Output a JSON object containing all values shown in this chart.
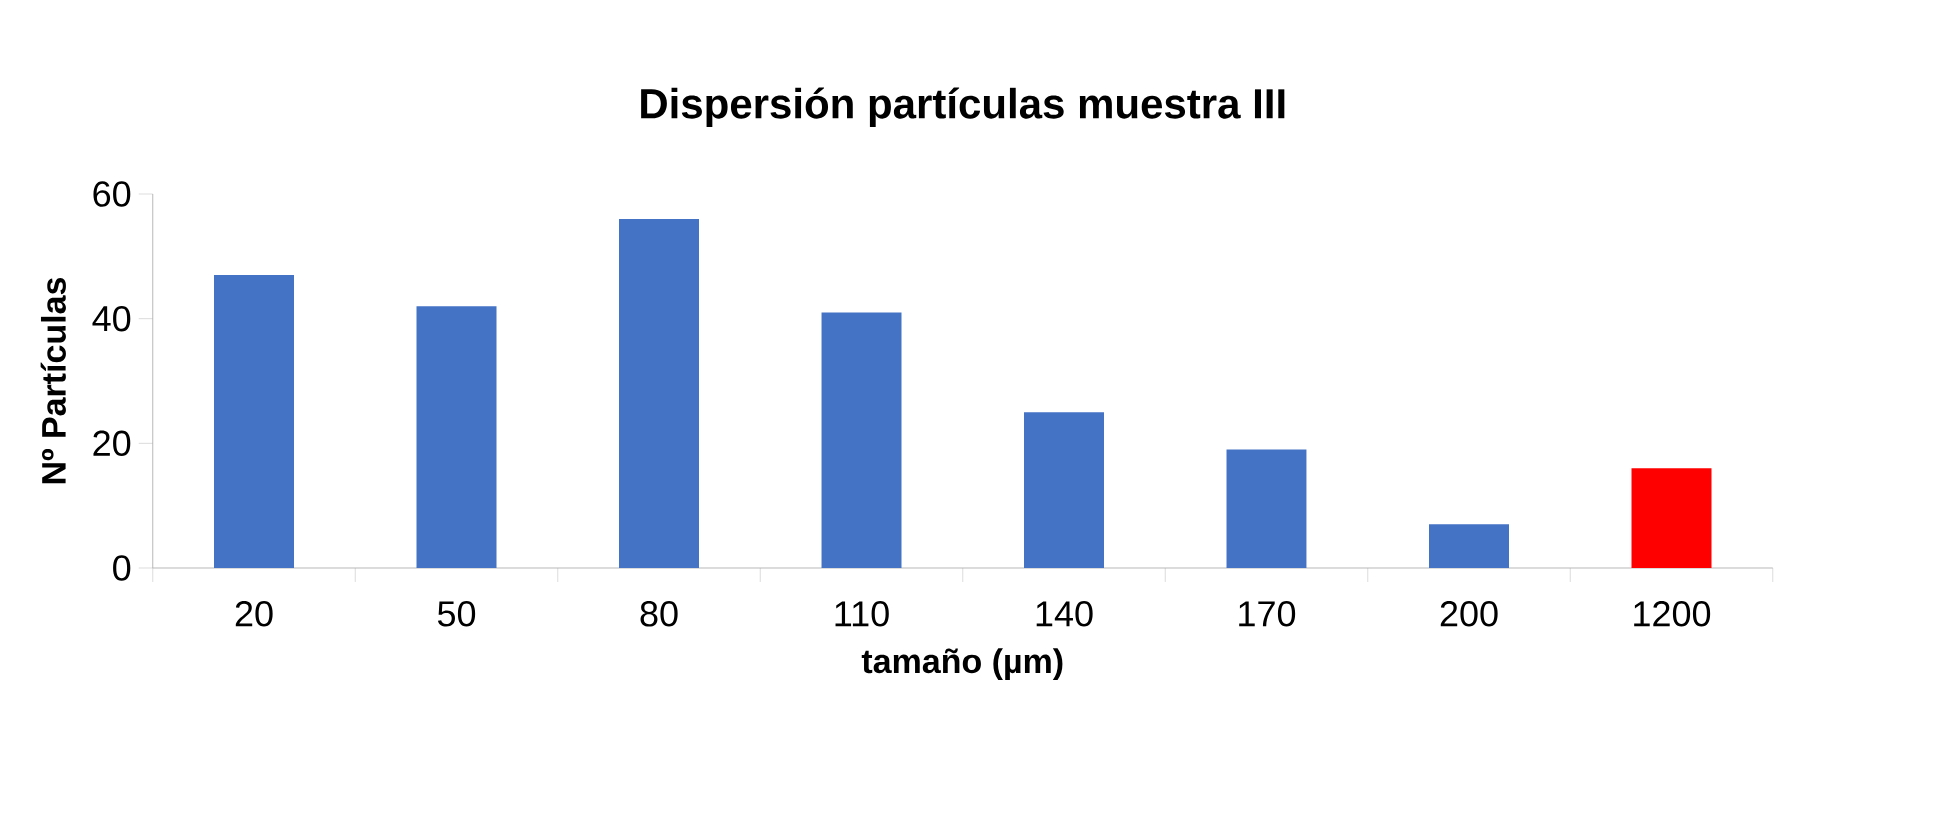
{
  "chart_data": {
    "type": "bar",
    "title": "Dispersión partículas muestra III",
    "xlabel": "tamaño (µm)",
    "ylabel": "Nº Partículas",
    "categories": [
      "20",
      "50",
      "80",
      "110",
      "140",
      "170",
      "200",
      "1200"
    ],
    "values": [
      47,
      42,
      56,
      41,
      25,
      19,
      7,
      16
    ],
    "colors": [
      "#4472c4",
      "#4472c4",
      "#4472c4",
      "#4472c4",
      "#4472c4",
      "#4472c4",
      "#4472c4",
      "#ff0000"
    ],
    "ylim": [
      0,
      60
    ],
    "yticks": [
      0,
      20,
      40,
      60
    ]
  }
}
